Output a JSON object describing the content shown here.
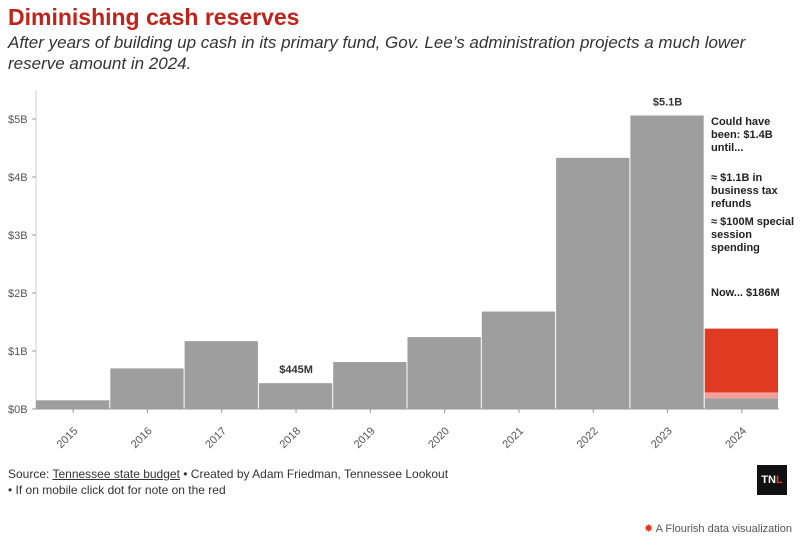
{
  "title": "Diminishing cash reserves",
  "subtitle": "After years of building up cash in its primary fund, Gov. Lee’s administration projects a much lower reserve amount in 2024.",
  "chart_data": {
    "type": "bar",
    "categories": [
      "2015",
      "2016",
      "2017",
      "2018",
      "2019",
      "2020",
      "2021",
      "2022",
      "2023",
      "2024"
    ],
    "values": [
      0.15,
      0.7,
      1.17,
      0.445,
      0.81,
      1.24,
      1.68,
      4.33,
      5.06,
      0.186
    ],
    "stack_2024": [
      {
        "value": 0.186,
        "color": "#9e9e9e"
      },
      {
        "value": 0.1,
        "color": "#f4a098"
      },
      {
        "value": 1.1,
        "color": "#e03b22"
      }
    ],
    "ylim": [
      0,
      5.5
    ],
    "yticks": [
      0,
      1,
      2,
      3,
      4,
      5
    ],
    "ytick_labels": [
      "$0B",
      "$1B",
      "$2B",
      "$3B",
      "$4B",
      "$5B"
    ],
    "data_labels": [
      {
        "category": "2018",
        "text": "$445M"
      },
      {
        "category": "2023",
        "text": "$5.1B"
      }
    ],
    "bar_color": "#9e9e9e",
    "xlabel": "",
    "ylabel": "",
    "grid": false
  },
  "annotations": {
    "could_have_been": "Could have been: $1.4B until...",
    "refunds": "≈ $1.1B in business tax refunds",
    "special_session": "≈ $100M special session spending",
    "now": "Now... $186M"
  },
  "footer": {
    "source_prefix": "Source: ",
    "source_link": "Tennessee state budget",
    "credit": " • Created by Adam Friedman, Tennessee Lookout",
    "mobile_note": "• If on mobile click dot for note on the red"
  },
  "logo": {
    "part1": "TN",
    "part2": "L"
  },
  "flourish_label": "A Flourish data visualization"
}
